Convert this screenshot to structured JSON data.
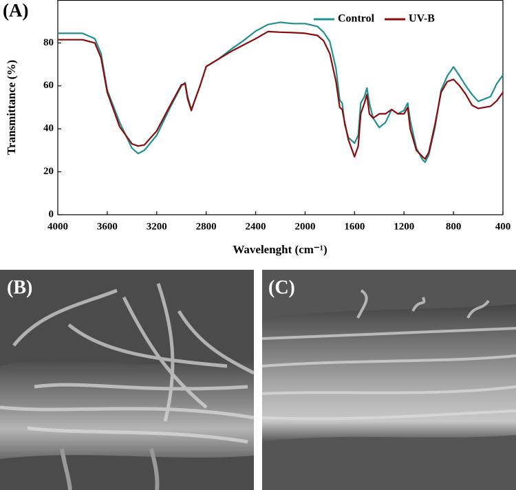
{
  "chart_data": {
    "type": "line",
    "panel_label": "(A)",
    "x_label": "Wavelenght (cm⁻¹)",
    "y_label": "Transmittance (%)",
    "x": [
      4000,
      3800,
      3700,
      3650,
      3600,
      3500,
      3400,
      3350,
      3300,
      3200,
      3100,
      3000,
      2970,
      2950,
      2920,
      2900,
      2850,
      2800,
      2700,
      2600,
      2500,
      2400,
      2300,
      2200,
      2100,
      2000,
      1900,
      1850,
      1800,
      1750,
      1720,
      1700,
      1680,
      1650,
      1600,
      1570,
      1550,
      1520,
      1500,
      1480,
      1450,
      1400,
      1350,
      1300,
      1250,
      1200,
      1170,
      1150,
      1100,
      1050,
      1030,
      1000,
      950,
      900,
      850,
      800,
      750,
      700,
      650,
      600,
      500,
      450,
      400
    ],
    "series": [
      {
        "name": "Control",
        "color": "#1f8f8f",
        "values": [
          84.5,
          84.5,
          82,
          75,
          58,
          43,
          31,
          28.5,
          30,
          37,
          49,
          60,
          61.5,
          55,
          49,
          52,
          60,
          69,
          72.5,
          77,
          81,
          85.5,
          88.6,
          89.6,
          89,
          89,
          87.7,
          85,
          80.6,
          68,
          53.4,
          52,
          42,
          36,
          33.3,
          37,
          52,
          55,
          59,
          52,
          45,
          40.6,
          43,
          49,
          47,
          48.6,
          52,
          44,
          31,
          25.6,
          24.5,
          27.8,
          40.6,
          58,
          64.6,
          68.8,
          64.6,
          60,
          56,
          52.8,
          55,
          61,
          65
        ]
      },
      {
        "name": "UV-B",
        "color": "#8b0a0a",
        "values": [
          81.5,
          81.5,
          80,
          73,
          57,
          41,
          33,
          32,
          32.5,
          39,
          50,
          60.5,
          61,
          54,
          48.5,
          52,
          60,
          69,
          72.5,
          76,
          79,
          82,
          85.3,
          85,
          84.8,
          84.5,
          83.5,
          81,
          75,
          62,
          50,
          49,
          43,
          35,
          27,
          32,
          47,
          52,
          56,
          47,
          45,
          47,
          47,
          49,
          47,
          47,
          50,
          40,
          30,
          27,
          26,
          29,
          42,
          57,
          62,
          63,
          60,
          56,
          51,
          49.5,
          50.5,
          53,
          57
        ]
      }
    ],
    "xlim": [
      4000,
      400
    ],
    "xticks": [
      4000,
      3600,
      3200,
      2800,
      2400,
      2000,
      1600,
      1200,
      800,
      400
    ],
    "ylim": [
      0,
      100
    ],
    "yticks": [
      0,
      20,
      40,
      60,
      80
    ],
    "legend": "upper right"
  },
  "images": [
    {
      "label": "(B)"
    },
    {
      "label": "(C)"
    }
  ]
}
